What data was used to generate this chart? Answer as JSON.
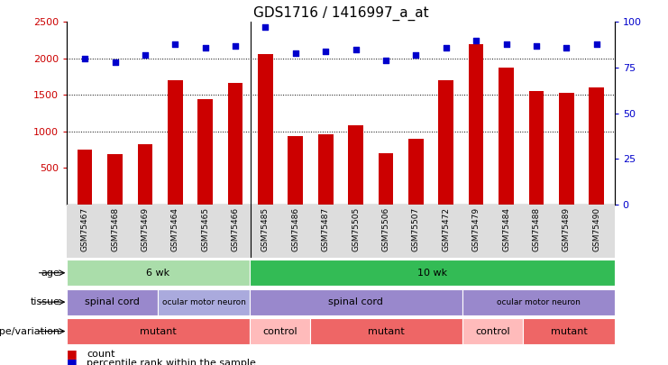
{
  "title": "GDS1716 / 1416997_a_at",
  "samples": [
    "GSM75467",
    "GSM75468",
    "GSM75469",
    "GSM75464",
    "GSM75465",
    "GSM75466",
    "GSM75485",
    "GSM75486",
    "GSM75487",
    "GSM75505",
    "GSM75506",
    "GSM75507",
    "GSM75472",
    "GSM75479",
    "GSM75484",
    "GSM75488",
    "GSM75489",
    "GSM75490"
  ],
  "counts": [
    750,
    690,
    830,
    1700,
    1440,
    1660,
    2060,
    940,
    960,
    1090,
    700,
    900,
    1700,
    2200,
    1880,
    1550,
    1530,
    1600
  ],
  "percentiles": [
    80,
    78,
    82,
    88,
    86,
    87,
    97,
    83,
    84,
    85,
    79,
    82,
    86,
    90,
    88,
    87,
    86,
    88
  ],
  "bar_color": "#CC0000",
  "dot_color": "#0000CC",
  "ylim_left": [
    0,
    2500
  ],
  "ylim_right": [
    0,
    100
  ],
  "yticks_left": [
    500,
    1000,
    1500,
    2000,
    2500
  ],
  "yticks_right": [
    0,
    25,
    50,
    75,
    100
  ],
  "grid_values": [
    1000,
    1500,
    2000
  ],
  "age_labels": [
    {
      "label": "6 wk",
      "start": 0,
      "end": 6,
      "color": "#AADDAA"
    },
    {
      "label": "10 wk",
      "start": 6,
      "end": 18,
      "color": "#33BB55"
    }
  ],
  "tissue_labels": [
    {
      "label": "spinal cord",
      "start": 0,
      "end": 3,
      "color": "#9988CC"
    },
    {
      "label": "ocular motor neuron",
      "start": 3,
      "end": 6,
      "color": "#AAAADD"
    },
    {
      "label": "spinal cord",
      "start": 6,
      "end": 13,
      "color": "#9988CC"
    },
    {
      "label": "ocular motor neuron",
      "start": 13,
      "end": 18,
      "color": "#9988CC"
    }
  ],
  "genotype_labels": [
    {
      "label": "mutant",
      "start": 0,
      "end": 6,
      "color": "#EE6666"
    },
    {
      "label": "control",
      "start": 6,
      "end": 8,
      "color": "#FFBBBB"
    },
    {
      "label": "mutant",
      "start": 8,
      "end": 13,
      "color": "#EE6666"
    },
    {
      "label": "control",
      "start": 13,
      "end": 15,
      "color": "#FFBBBB"
    },
    {
      "label": "mutant",
      "start": 15,
      "end": 18,
      "color": "#EE6666"
    }
  ],
  "row_labels": [
    "age",
    "tissue",
    "genotype/variation"
  ],
  "xtick_bg": "#DDDDDD",
  "legend_items": [
    {
      "color": "#CC0000",
      "label": "count"
    },
    {
      "color": "#0000CC",
      "label": "percentile rank within the sample"
    }
  ]
}
